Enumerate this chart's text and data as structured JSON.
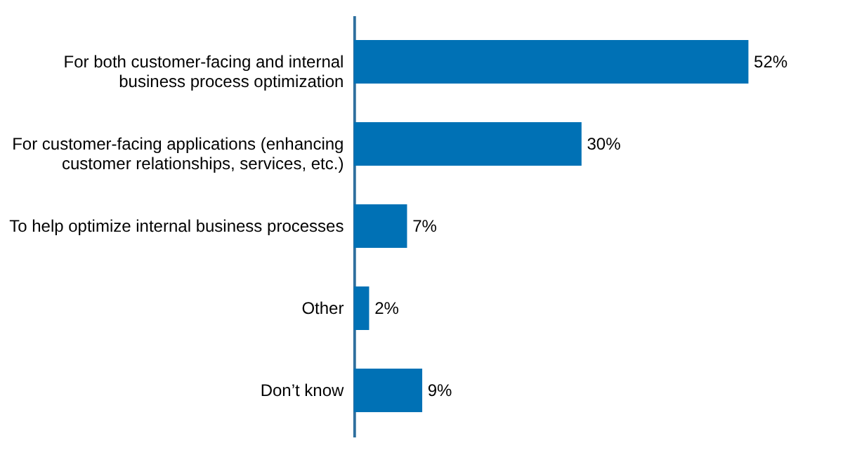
{
  "chart_data": {
    "type": "bar",
    "orientation": "horizontal",
    "categories": [
      "For both customer-facing and internal\nbusiness process optimization",
      "For customer-facing applications (enhancing\ncustomer relationships, services, etc.)",
      "To help optimize internal business processes",
      "Other",
      "Don’t know"
    ],
    "values": [
      52,
      30,
      7,
      2,
      9
    ],
    "value_labels": [
      "52%",
      "30%",
      "7%",
      "2%",
      "9%"
    ],
    "color": "#0071b5",
    "grid": false
  }
}
